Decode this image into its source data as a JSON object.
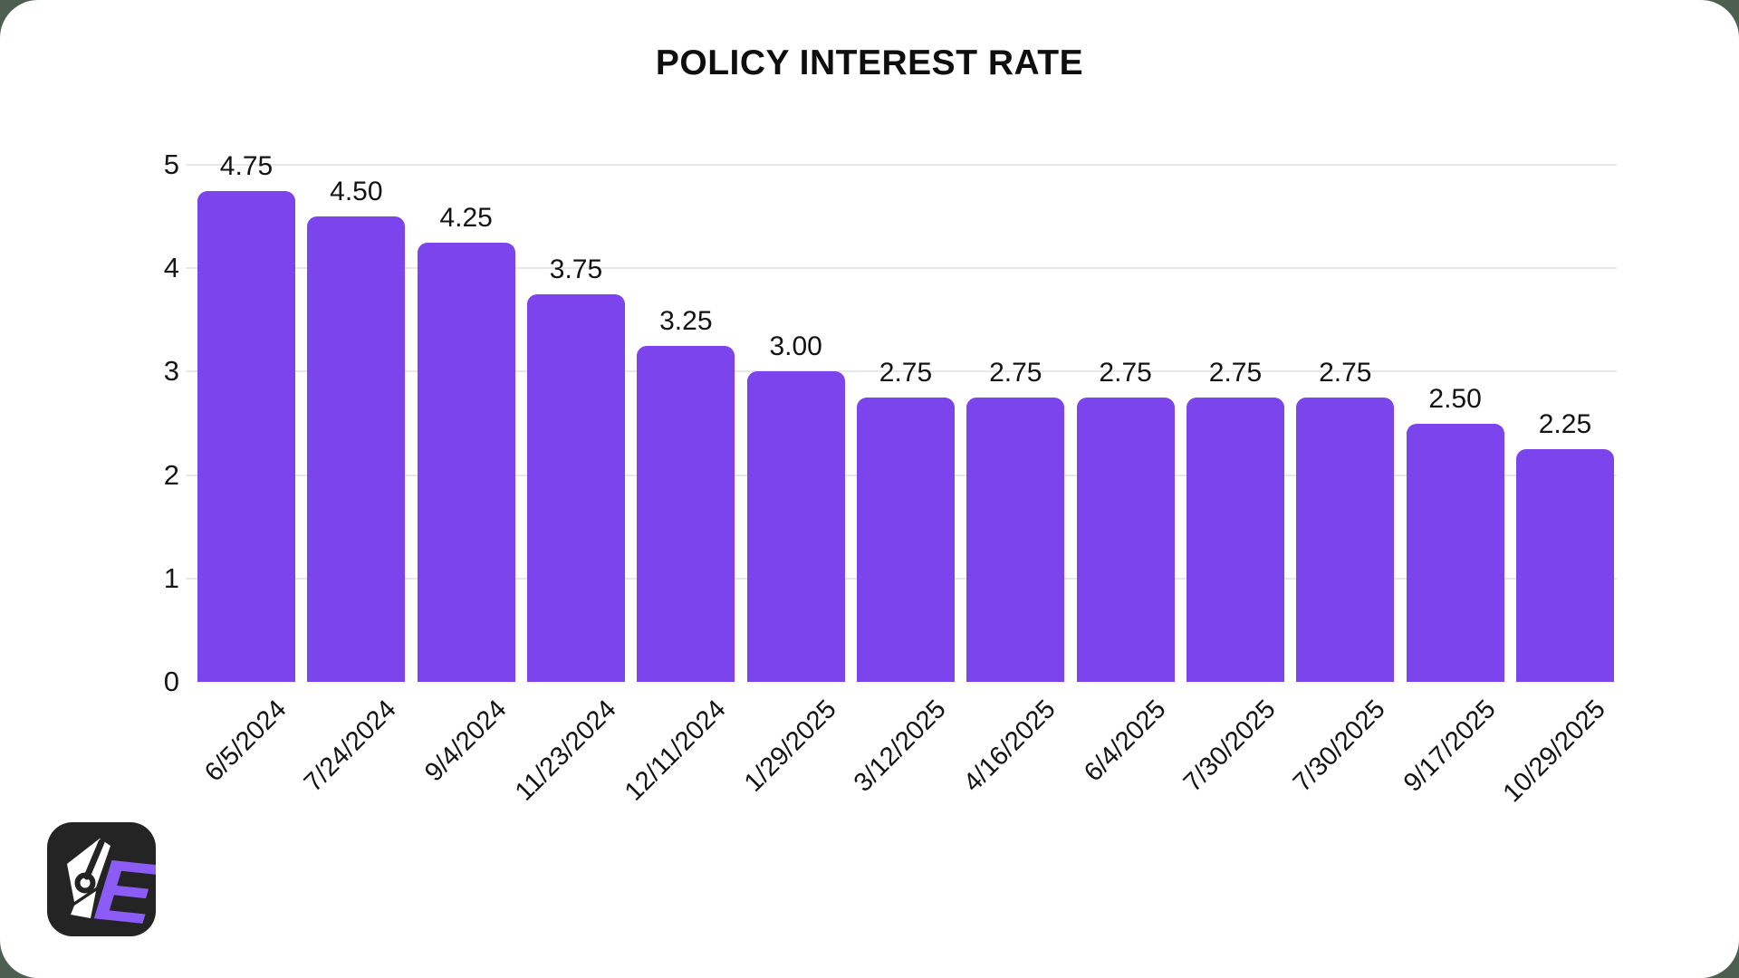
{
  "page": {
    "outer_background": "#4D5F50",
    "card_background": "#FFFFFF"
  },
  "chart_data": {
    "type": "bar",
    "title": "POLICY INTEREST RATE",
    "categories": [
      "6/5/2024",
      "7/24/2024",
      "9/4/2024",
      "11/23/2024",
      "12/11/2024",
      "1/29/2025",
      "3/12/2025",
      "4/16/2025",
      "6/4/2025",
      "7/30/2025",
      "7/30/2025",
      "9/17/2025",
      "10/29/2025"
    ],
    "values": [
      4.75,
      4.5,
      4.25,
      3.75,
      3.25,
      3.0,
      2.75,
      2.75,
      2.75,
      2.75,
      2.75,
      2.5,
      2.25
    ],
    "value_labels": [
      "4.75",
      "4.50",
      "4.25",
      "3.75",
      "3.25",
      "3.00",
      "2.75",
      "2.75",
      "2.75",
      "2.75",
      "2.75",
      "2.50",
      "2.25"
    ],
    "xlabel": "",
    "ylabel": "",
    "ylim": [
      0,
      5
    ],
    "y_ticks": [
      "5",
      "4",
      "3",
      "2",
      "1",
      "0"
    ],
    "grid": true,
    "legend_position": "none",
    "bar_color": "#7C44EC",
    "grid_color": "#E8E8EB",
    "text_color": "#131313"
  },
  "logo": {
    "letter": "E",
    "background_color": "#242424",
    "letter_color": "#8B5CF6",
    "icon_color": "#FFFFFF"
  }
}
